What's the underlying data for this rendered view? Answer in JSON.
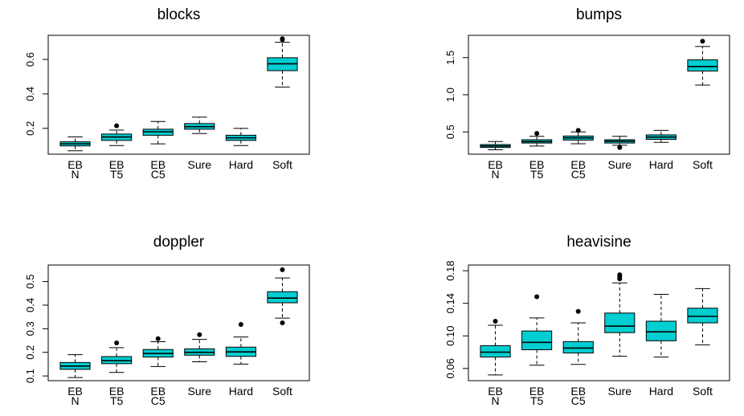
{
  "colors": {
    "box_fill": "#00CED1",
    "stroke": "#000000",
    "background": "#ffffff"
  },
  "chart_data": [
    {
      "type": "boxplot",
      "title": "blocks",
      "categories": [
        "EB\nN",
        "EB\nT5",
        "EB\nC5",
        "Sure",
        "Hard",
        "Soft"
      ],
      "yticks": [
        "0.2",
        "0.4",
        "0.6"
      ],
      "ylim": [
        0.05,
        0.74
      ],
      "boxes": [
        {
          "whisker_low": 0.07,
          "q1": 0.098,
          "median": 0.11,
          "q3": 0.122,
          "whisker_high": 0.15,
          "outliers": []
        },
        {
          "whisker_low": 0.1,
          "q1": 0.13,
          "median": 0.15,
          "q3": 0.167,
          "whisker_high": 0.19,
          "outliers": [
            0.215
          ]
        },
        {
          "whisker_low": 0.11,
          "q1": 0.16,
          "median": 0.18,
          "q3": 0.195,
          "whisker_high": 0.24,
          "outliers": []
        },
        {
          "whisker_low": 0.17,
          "q1": 0.195,
          "median": 0.21,
          "q3": 0.228,
          "whisker_high": 0.265,
          "outliers": []
        },
        {
          "whisker_low": 0.1,
          "q1": 0.13,
          "median": 0.145,
          "q3": 0.16,
          "whisker_high": 0.2,
          "outliers": []
        },
        {
          "whisker_low": 0.44,
          "q1": 0.535,
          "median": 0.575,
          "q3": 0.61,
          "whisker_high": 0.7,
          "outliers": [
            0.715,
            0.72
          ]
        }
      ]
    },
    {
      "type": "boxplot",
      "title": "bumps",
      "categories": [
        "EB\nN",
        "EB\nT5",
        "EB\nC5",
        "Sure",
        "Hard",
        "Soft"
      ],
      "yticks": [
        "0.5",
        "1.0",
        "1.5"
      ],
      "ylim": [
        0.2,
        1.8
      ],
      "boxes": [
        {
          "whisker_low": 0.26,
          "q1": 0.29,
          "median": 0.31,
          "q3": 0.33,
          "whisker_high": 0.37,
          "outliers": []
        },
        {
          "whisker_low": 0.31,
          "q1": 0.35,
          "median": 0.37,
          "q3": 0.395,
          "whisker_high": 0.44,
          "outliers": [
            0.48
          ]
        },
        {
          "whisker_low": 0.34,
          "q1": 0.39,
          "median": 0.42,
          "q3": 0.445,
          "whisker_high": 0.5,
          "outliers": [
            0.52
          ]
        },
        {
          "whisker_low": 0.32,
          "q1": 0.35,
          "median": 0.375,
          "q3": 0.395,
          "whisker_high": 0.44,
          "outliers": [
            0.29
          ]
        },
        {
          "whisker_low": 0.36,
          "q1": 0.4,
          "median": 0.43,
          "q3": 0.46,
          "whisker_high": 0.52,
          "outliers": []
        },
        {
          "whisker_low": 1.13,
          "q1": 1.32,
          "median": 1.38,
          "q3": 1.47,
          "whisker_high": 1.65,
          "outliers": [
            1.72
          ]
        }
      ]
    },
    {
      "type": "boxplot",
      "title": "doppler",
      "categories": [
        "EB\nN",
        "EB\nT5",
        "EB\nC5",
        "Sure",
        "Hard",
        "Soft"
      ],
      "yticks": [
        "0.1",
        "0.2",
        "0.3",
        "0.4",
        "0.5"
      ],
      "ylim": [
        0.08,
        0.57
      ],
      "boxes": [
        {
          "whisker_low": 0.093,
          "q1": 0.128,
          "median": 0.142,
          "q3": 0.157,
          "whisker_high": 0.19,
          "outliers": []
        },
        {
          "whisker_low": 0.115,
          "q1": 0.152,
          "median": 0.165,
          "q3": 0.182,
          "whisker_high": 0.22,
          "outliers": [
            0.24
          ]
        },
        {
          "whisker_low": 0.14,
          "q1": 0.18,
          "median": 0.195,
          "q3": 0.212,
          "whisker_high": 0.245,
          "outliers": [
            0.258
          ]
        },
        {
          "whisker_low": 0.16,
          "q1": 0.188,
          "median": 0.2,
          "q3": 0.215,
          "whisker_high": 0.255,
          "outliers": [
            0.275
          ]
        },
        {
          "whisker_low": 0.15,
          "q1": 0.183,
          "median": 0.202,
          "q3": 0.222,
          "whisker_high": 0.265,
          "outliers": [
            0.318
          ]
        },
        {
          "whisker_low": 0.345,
          "q1": 0.41,
          "median": 0.43,
          "q3": 0.457,
          "whisker_high": 0.515,
          "outliers": [
            0.55,
            0.325
          ]
        }
      ]
    },
    {
      "type": "boxplot",
      "title": "heavisine",
      "categories": [
        "EB\nN",
        "EB\nT5",
        "EB\nC5",
        "Sure",
        "Hard",
        "Soft"
      ],
      "yticks": [
        "0.06",
        "0.10",
        "0.14",
        "0.18"
      ],
      "ylim": [
        0.045,
        0.187
      ],
      "boxes": [
        {
          "whisker_low": 0.052,
          "q1": 0.074,
          "median": 0.08,
          "q3": 0.088,
          "whisker_high": 0.113,
          "outliers": [
            0.118
          ]
        },
        {
          "whisker_low": 0.064,
          "q1": 0.083,
          "median": 0.092,
          "q3": 0.106,
          "whisker_high": 0.122,
          "outliers": [
            0.148
          ]
        },
        {
          "whisker_low": 0.065,
          "q1": 0.079,
          "median": 0.085,
          "q3": 0.093,
          "whisker_high": 0.116,
          "outliers": [
            0.13
          ]
        },
        {
          "whisker_low": 0.075,
          "q1": 0.104,
          "median": 0.112,
          "q3": 0.128,
          "whisker_high": 0.165,
          "outliers": [
            0.17,
            0.173,
            0.175
          ]
        },
        {
          "whisker_low": 0.074,
          "q1": 0.094,
          "median": 0.105,
          "q3": 0.118,
          "whisker_high": 0.151,
          "outliers": []
        },
        {
          "whisker_low": 0.089,
          "q1": 0.116,
          "median": 0.124,
          "q3": 0.134,
          "whisker_high": 0.158,
          "outliers": []
        }
      ]
    }
  ]
}
